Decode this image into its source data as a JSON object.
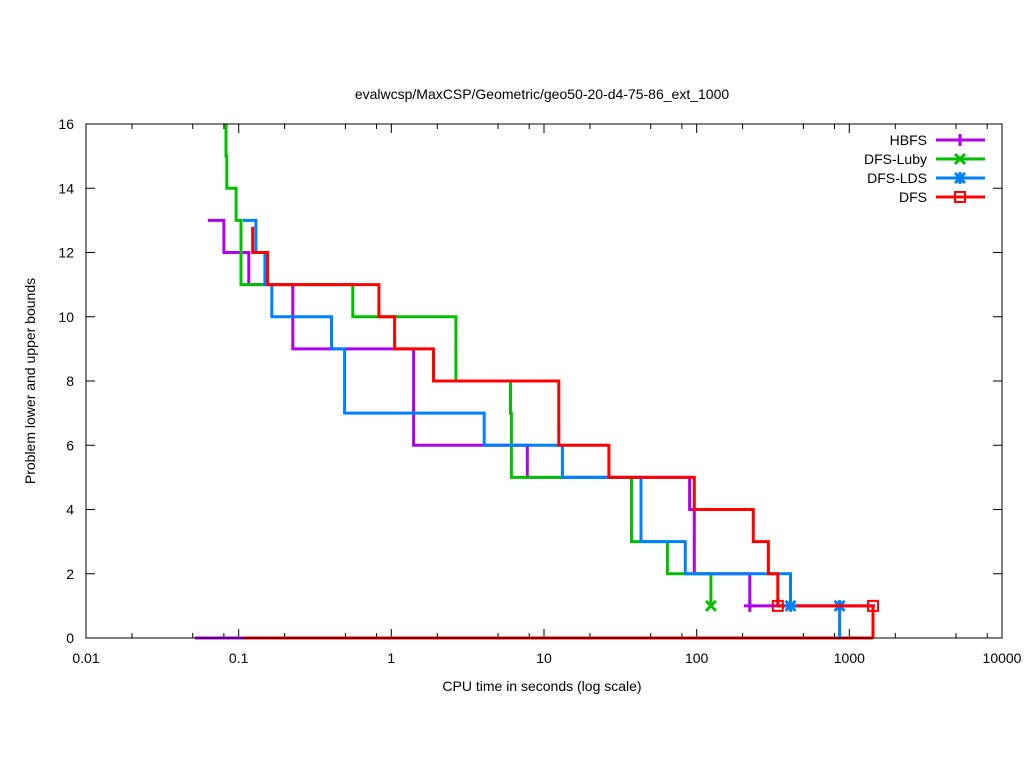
{
  "chart_data": {
    "type": "line",
    "title": "evalwcsp/MaxCSP/Geometric/geo50-20-d4-75-86_ext_1000",
    "xlabel": "CPU time in seconds (log scale)",
    "ylabel": "Problem lower and upper bounds",
    "xscale": "log",
    "xlim": [
      0.01,
      10000
    ],
    "ylim": [
      0,
      16
    ],
    "xticks": [
      "0.01",
      "0.1",
      "1",
      "10",
      "100",
      "1000",
      "10000"
    ],
    "xtick_values": [
      0.01,
      0.1,
      1,
      10,
      100,
      1000,
      10000
    ],
    "yticks": [
      "0",
      "2",
      "4",
      "6",
      "8",
      "10",
      "12",
      "14",
      "16"
    ],
    "ytick_values": [
      0,
      2,
      4,
      6,
      8,
      10,
      12,
      14,
      16
    ],
    "legend_position": "top-right",
    "series": [
      {
        "name": "HBFS",
        "color": "#b000f0",
        "marker": "plus",
        "upper": [
          [
            0.0628,
            13
          ],
          [
            0.08,
            13
          ],
          [
            0.08,
            12
          ],
          [
            0.1166,
            12
          ],
          [
            0.1166,
            11
          ],
          [
            0.2263,
            11
          ],
          [
            0.2263,
            9
          ],
          [
            1.4,
            9
          ],
          [
            1.4,
            6
          ],
          [
            7.77,
            6
          ],
          [
            7.77,
            5
          ],
          [
            89.9,
            5
          ],
          [
            89.9,
            4
          ],
          [
            96.5,
            4
          ],
          [
            96.5,
            2
          ],
          [
            223,
            2
          ],
          [
            223,
            1
          ],
          [
            1476,
            1
          ]
        ],
        "lower": [
          [
            0.0517,
            0
          ],
          [
            0.108,
            0
          ]
        ],
        "final_marker": [
          223,
          1
        ]
      },
      {
        "name": "DFS-Luby",
        "color": "#00c000",
        "marker": "x",
        "upper": [
          [
            0.0826,
            16
          ],
          [
            0.0826,
            15
          ],
          [
            0.0836,
            15
          ],
          [
            0.0836,
            14
          ],
          [
            0.0962,
            14
          ],
          [
            0.0962,
            13
          ],
          [
            0.1036,
            13
          ],
          [
            0.1036,
            11
          ],
          [
            0.5589,
            11
          ],
          [
            0.5589,
            10
          ],
          [
            2.65,
            10
          ],
          [
            2.65,
            8
          ],
          [
            6.03,
            8
          ],
          [
            6.03,
            7
          ],
          [
            6.12,
            7
          ],
          [
            6.12,
            5
          ],
          [
            37.4,
            5
          ],
          [
            37.4,
            3
          ],
          [
            64.3,
            3
          ],
          [
            64.3,
            2
          ],
          [
            124,
            2
          ],
          [
            124,
            1
          ]
        ],
        "lower": [],
        "final_marker": [
          124,
          1
        ]
      },
      {
        "name": "DFS-LDS",
        "color": "#0080ff",
        "marker": "star",
        "upper": [
          [
            0.1066,
            13
          ],
          [
            0.1297,
            13
          ],
          [
            0.1297,
            12
          ],
          [
            0.1486,
            12
          ],
          [
            0.1486,
            11
          ],
          [
            0.1648,
            11
          ],
          [
            0.1648,
            10
          ],
          [
            0.4055,
            10
          ],
          [
            0.4055,
            9
          ],
          [
            0.4945,
            9
          ],
          [
            0.4945,
            7
          ],
          [
            4.06,
            7
          ],
          [
            4.06,
            6
          ],
          [
            13.2,
            6
          ],
          [
            13.2,
            5
          ],
          [
            43.2,
            5
          ],
          [
            43.2,
            3
          ],
          [
            84.3,
            3
          ],
          [
            84.3,
            2
          ],
          [
            412,
            2
          ],
          [
            412,
            1
          ],
          [
            864,
            1
          ],
          [
            864,
            0
          ]
        ],
        "lower": [],
        "final_marker": [
          864,
          1
        ]
      },
      {
        "name": "DFS",
        "color": "#ff0000",
        "marker": "square",
        "upper": [
          [
            0.1236,
            12.8
          ],
          [
            0.1236,
            12
          ],
          [
            0.1548,
            12
          ],
          [
            0.1548,
            11
          ],
          [
            0.8293,
            11
          ],
          [
            0.8293,
            10
          ],
          [
            1.05,
            10
          ],
          [
            1.05,
            9
          ],
          [
            1.89,
            9
          ],
          [
            1.89,
            8
          ],
          [
            12.5,
            8
          ],
          [
            12.5,
            6
          ],
          [
            26.6,
            6
          ],
          [
            26.6,
            5
          ],
          [
            96.5,
            5
          ],
          [
            96.5,
            4
          ],
          [
            235,
            4
          ],
          [
            235,
            3
          ],
          [
            295,
            3
          ],
          [
            295,
            2
          ],
          [
            340,
            2
          ],
          [
            340,
            1
          ],
          [
            1430,
            1
          ],
          [
            1430,
            0
          ]
        ],
        "lower": [
          [
            0.108,
            0
          ],
          [
            1430,
            0
          ]
        ],
        "final_marker": [
          1430,
          1
        ]
      }
    ],
    "extra_markers": [
      {
        "series": "DFS",
        "point": [
          340,
          1
        ]
      },
      {
        "series": "DFS-LDS",
        "point": [
          412,
          1
        ]
      }
    ]
  }
}
